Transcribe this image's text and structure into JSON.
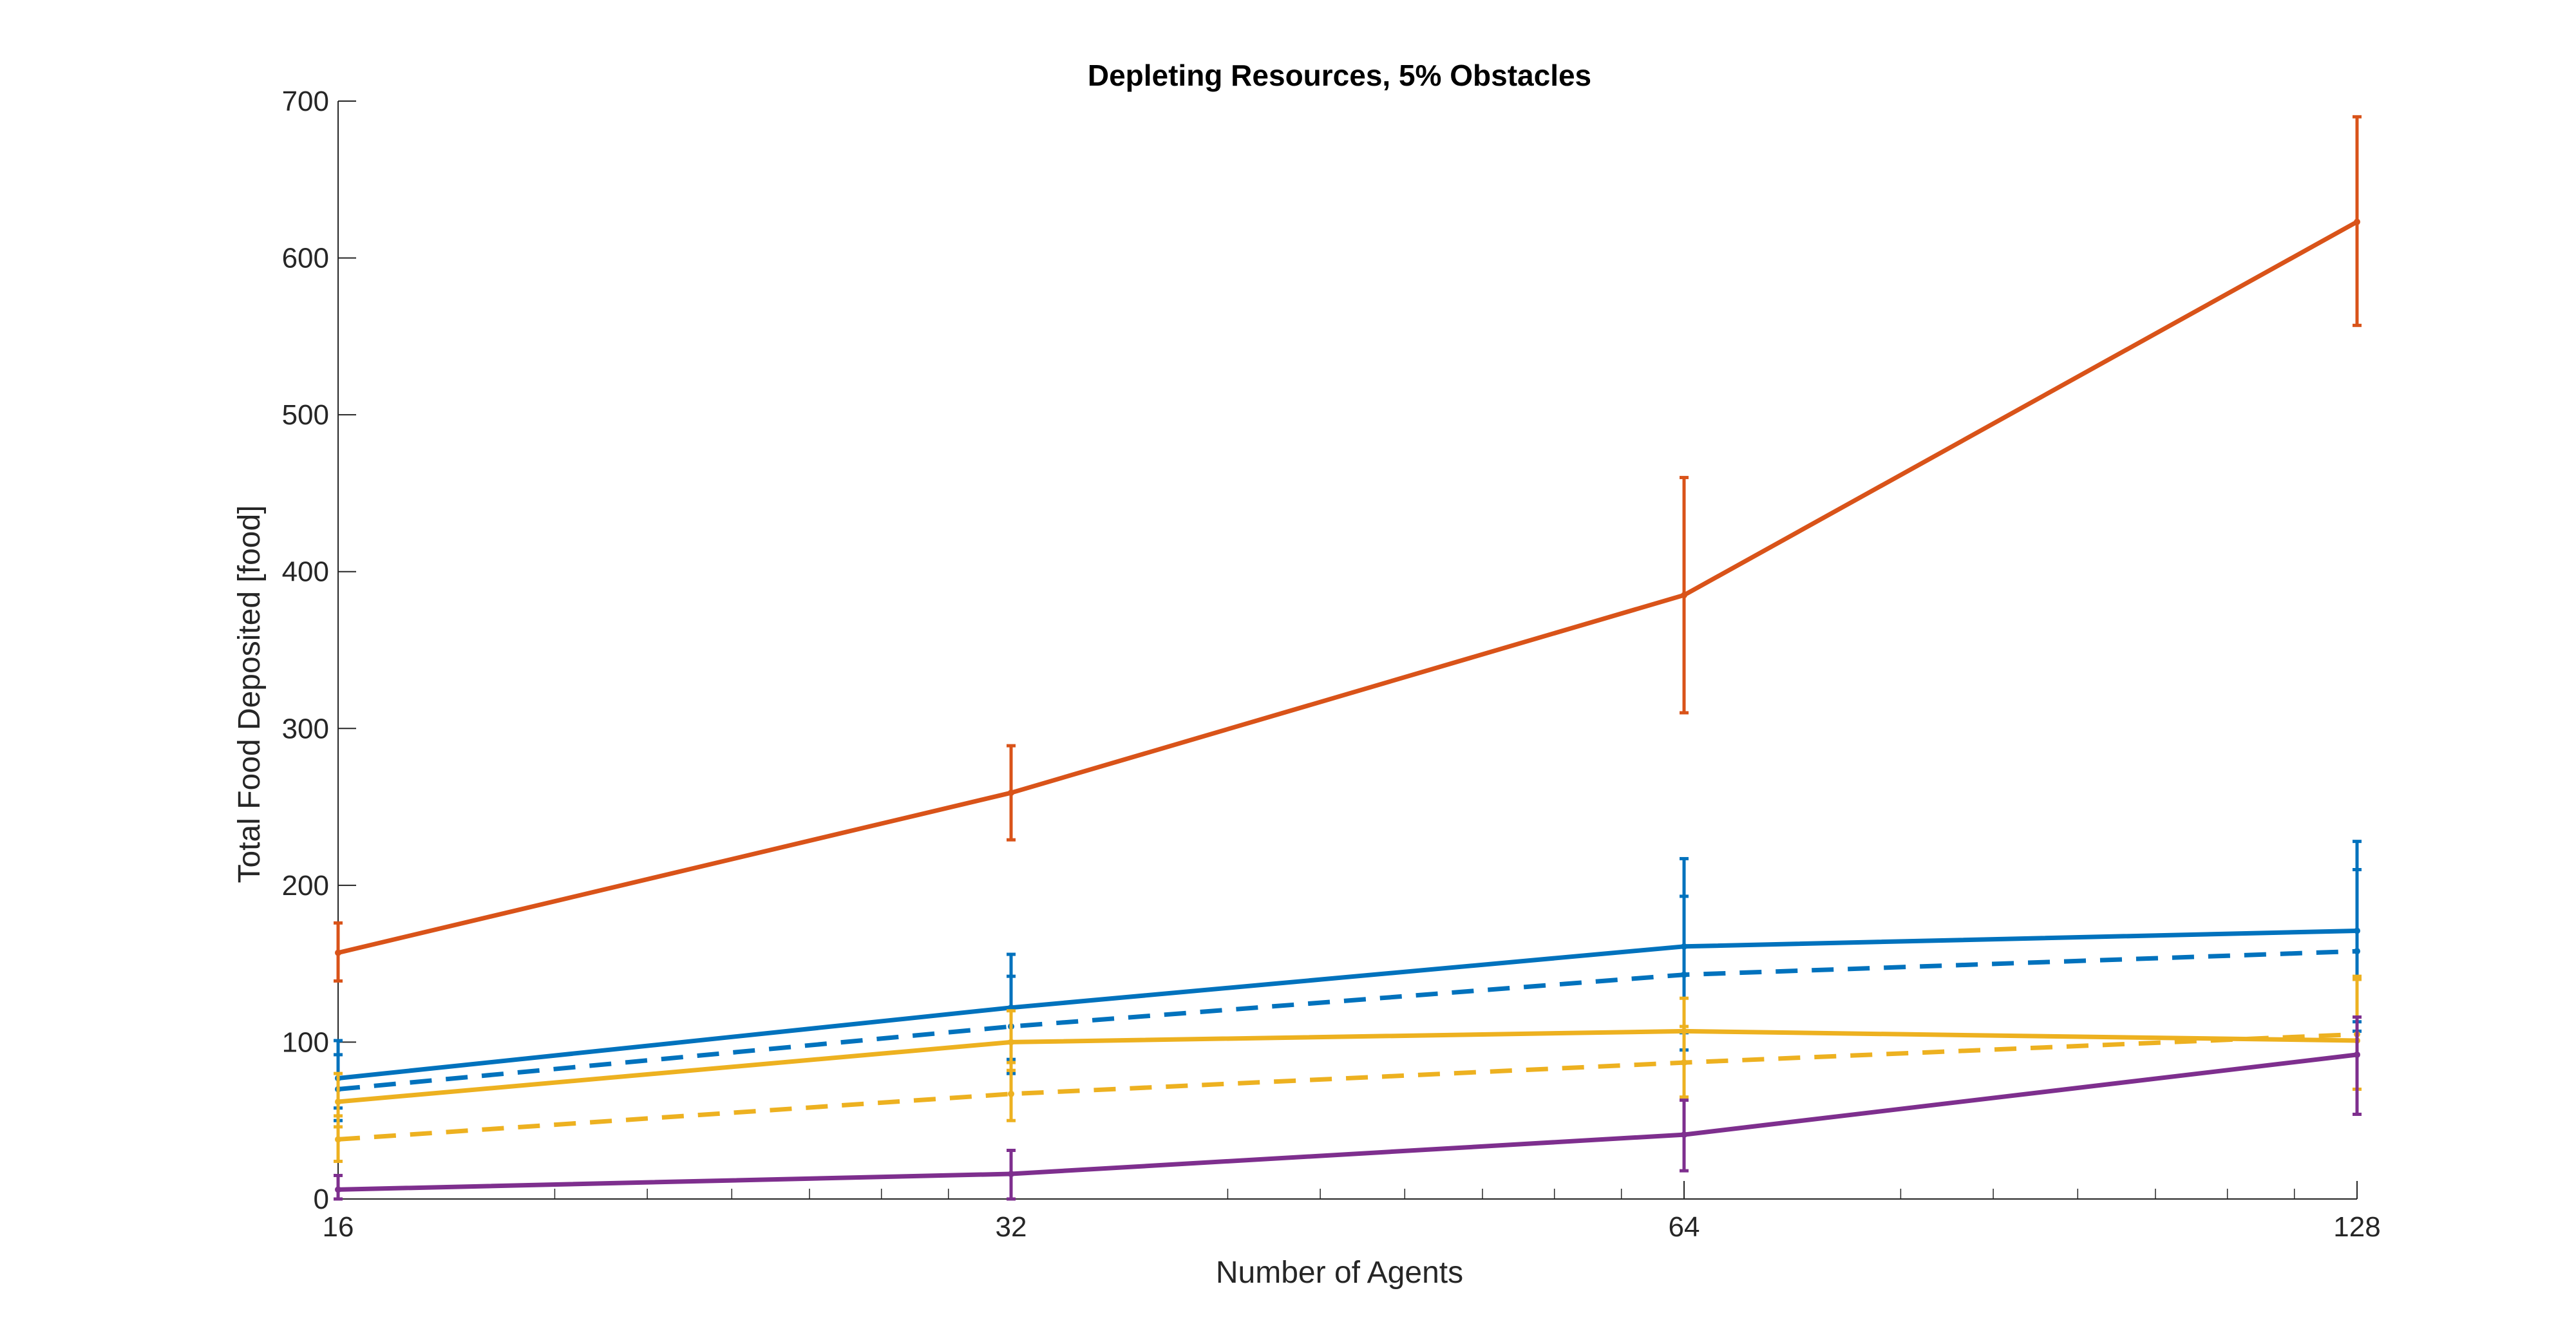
{
  "chart_data": {
    "type": "line",
    "title": "Depleting Resources, 5% Obstacles",
    "xlabel": "Number of Agents",
    "ylabel": "Total Food Deposited [food]",
    "x_scale": "log2",
    "x": [
      16,
      32,
      64,
      128
    ],
    "x_tick_labels": [
      "16",
      "32",
      "64",
      "128"
    ],
    "ylim": [
      0,
      700
    ],
    "y_ticks": [
      0,
      100,
      200,
      300,
      400,
      500,
      600,
      700
    ],
    "y_tick_labels": [
      "0",
      "100",
      "200",
      "300",
      "400",
      "500",
      "600",
      "700"
    ],
    "grid": false,
    "legend": "none",
    "series": [
      {
        "color": "#D95319",
        "style": "solid",
        "values": [
          157,
          259,
          385,
          623
        ],
        "err_low": [
          139,
          229,
          310,
          557
        ],
        "err_high": [
          176,
          289,
          460,
          690
        ]
      },
      {
        "color": "#0072BD",
        "style": "solid",
        "values": [
          77,
          122,
          161,
          171
        ],
        "err_low": [
          58,
          89,
          106,
          113
        ],
        "err_high": [
          101,
          156,
          217,
          228
        ]
      },
      {
        "color": "#0072BD",
        "style": "dashed",
        "values": [
          70,
          110,
          143,
          158
        ],
        "err_low": [
          50,
          80,
          95,
          107
        ],
        "err_high": [
          92,
          142,
          193,
          210
        ]
      },
      {
        "color": "#EDB120",
        "style": "solid",
        "values": [
          62,
          100,
          107,
          101
        ],
        "err_low": [
          46,
          82,
          87,
          70
        ],
        "err_high": [
          80,
          120,
          128,
          140
        ]
      },
      {
        "color": "#EDB120",
        "style": "dashed",
        "values": [
          38,
          67,
          87,
          105
        ],
        "err_low": [
          24,
          50,
          65,
          70
        ],
        "err_high": [
          53,
          87,
          110,
          142
        ]
      },
      {
        "color": "#7E2F8E",
        "style": "solid",
        "values": [
          6,
          16,
          41,
          92
        ],
        "err_low": [
          0,
          0,
          18,
          54
        ],
        "err_high": [
          15,
          31,
          63,
          116
        ]
      }
    ]
  }
}
